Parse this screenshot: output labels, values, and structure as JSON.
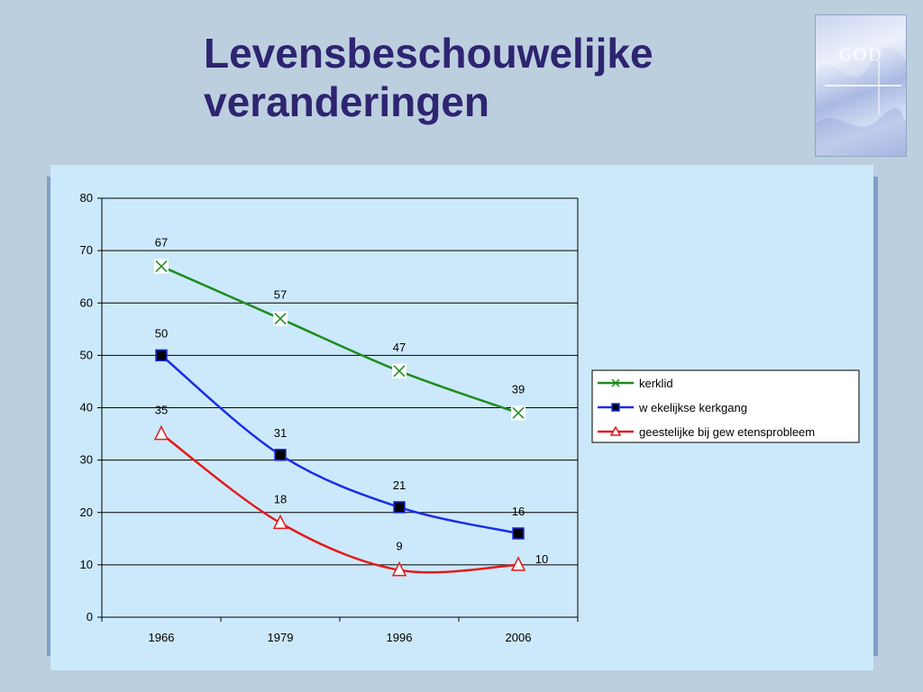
{
  "slide": {
    "title_line1": "Levensbeschouwelijke",
    "title_line2": "veranderingen",
    "logo_text": "GOD"
  },
  "chart_data": {
    "type": "line",
    "categories": [
      "1966",
      "1979",
      "1996",
      "2006"
    ],
    "ylim": [
      0,
      80
    ],
    "yticks": [
      0,
      10,
      20,
      30,
      40,
      50,
      60,
      70,
      80
    ],
    "grid": true,
    "legend_position": "right",
    "title": "",
    "xlabel": "",
    "ylabel": "",
    "series": [
      {
        "name": "kerklid",
        "values": [
          67,
          57,
          47,
          39
        ],
        "color": "#1e8c1e",
        "marker": "x"
      },
      {
        "name": "w ekelijkse kerkgang",
        "values": [
          50,
          31,
          21,
          16
        ],
        "color": "#1a2ee6",
        "marker": "square"
      },
      {
        "name": "geestelijke bij gew etensprobleem",
        "values": [
          35,
          18,
          9,
          10
        ],
        "color": "#e31a1a",
        "marker": "triangle"
      }
    ]
  }
}
